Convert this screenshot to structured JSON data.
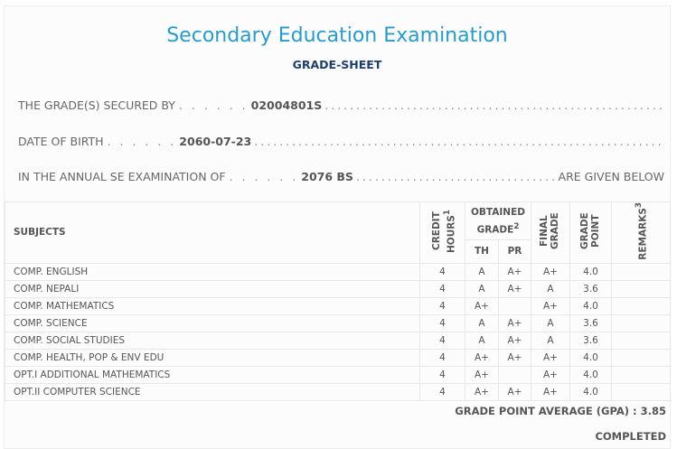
{
  "title": "Secondary Education Examination",
  "subtitle": "GRADE-SHEET",
  "info": {
    "secured_label": "THE GRADE(S) SECURED BY",
    "secured_value": "02004801S",
    "dob_label": "DATE OF BIRTH",
    "dob_value": "2060-07-23",
    "exam_label": "IN THE ANNUAL SE EXAMINATION OF",
    "exam_value": "2076 BS",
    "exam_suffix": "ARE GIVEN BELOW",
    "leader": ". . . . . ."
  },
  "headers": {
    "subjects": "SUBJECTS",
    "credit": "CREDIT HOURS",
    "credit_sup": "1",
    "obtained": "OBTAINED GRADE",
    "obtained_sup": "2",
    "th": "TH",
    "pr": "PR",
    "final": "FINAL GRADE",
    "gp": "GRADE POINT",
    "remarks": "REMARKS",
    "remarks_sup": "3"
  },
  "rows": [
    {
      "subject": "COMP. ENGLISH",
      "credit": "4",
      "th": "A",
      "pr": "A+",
      "final": "A+",
      "gp": "4.0",
      "remarks": ""
    },
    {
      "subject": "COMP. NEPALI",
      "credit": "4",
      "th": "A",
      "pr": "A+",
      "final": "A",
      "gp": "3.6",
      "remarks": ""
    },
    {
      "subject": "COMP. MATHEMATICS",
      "credit": "4",
      "th": "A+",
      "pr": "",
      "final": "A+",
      "gp": "4.0",
      "remarks": ""
    },
    {
      "subject": "COMP. SCIENCE",
      "credit": "4",
      "th": "A",
      "pr": "A+",
      "final": "A",
      "gp": "3.6",
      "remarks": ""
    },
    {
      "subject": "COMP. SOCIAL STUDIES",
      "credit": "4",
      "th": "A",
      "pr": "A+",
      "final": "A",
      "gp": "3.6",
      "remarks": ""
    },
    {
      "subject": "COMP. HEALTH, POP & ENV EDU",
      "credit": "4",
      "th": "A+",
      "pr": "A+",
      "final": "A+",
      "gp": "4.0",
      "remarks": ""
    },
    {
      "subject": "OPT.I ADDITIONAL MATHEMATICS",
      "credit": "4",
      "th": "A+",
      "pr": "",
      "final": "A+",
      "gp": "4.0",
      "remarks": ""
    },
    {
      "subject": "OPT.II COMPUTER SCIENCE",
      "credit": "4",
      "th": "A+",
      "pr": "A+",
      "final": "A+",
      "gp": "4.0",
      "remarks": ""
    }
  ],
  "gpa": "GRADE POINT AVERAGE (GPA) : 3.85",
  "status": "COMPLETED"
}
